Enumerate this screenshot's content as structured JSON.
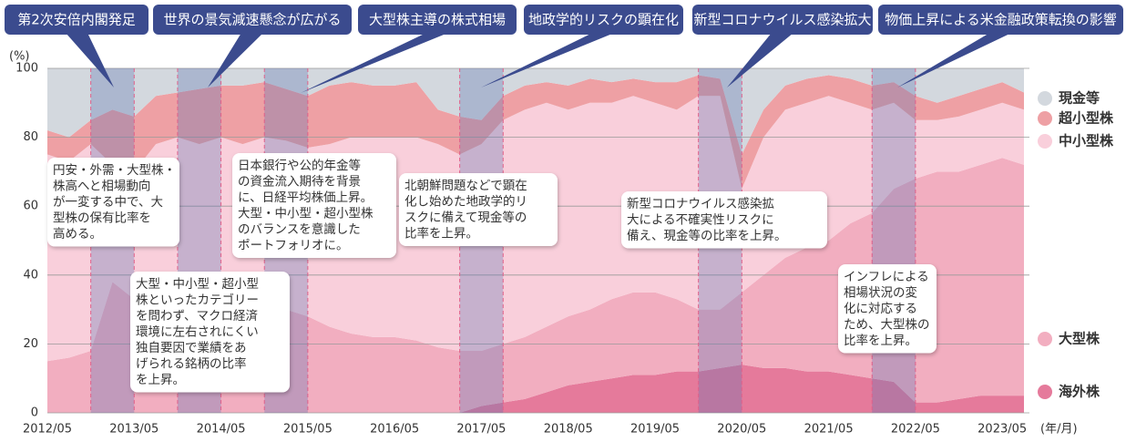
{
  "chart_data": {
    "type": "stacked_area",
    "y_label": "(%)",
    "x_label": "(年/月)",
    "x": [
      "2012/05",
      "2012/08",
      "2012/11",
      "2013/02",
      "2013/05",
      "2013/08",
      "2013/11",
      "2014/02",
      "2014/05",
      "2014/08",
      "2014/11",
      "2015/02",
      "2015/05",
      "2015/08",
      "2015/11",
      "2016/02",
      "2016/05",
      "2016/08",
      "2016/11",
      "2017/02",
      "2017/05",
      "2017/08",
      "2017/11",
      "2018/02",
      "2018/05",
      "2018/08",
      "2018/11",
      "2019/02",
      "2019/05",
      "2019/08",
      "2019/11",
      "2020/02",
      "2020/05",
      "2020/08",
      "2020/11",
      "2021/02",
      "2021/05",
      "2021/08",
      "2021/11",
      "2022/02",
      "2022/05",
      "2022/08",
      "2022/11",
      "2023/02",
      "2023/05",
      "2023/08"
    ],
    "xticks": [
      "2012/05",
      "2013/05",
      "2014/05",
      "2015/05",
      "2016/05",
      "2017/05",
      "2018/05",
      "2019/05",
      "2020/05",
      "2021/05",
      "2022/05",
      "2023/05"
    ],
    "ylim": [
      0,
      100
    ],
    "yticks": [
      0,
      20,
      40,
      60,
      80,
      100
    ],
    "grid": true,
    "series": [
      {
        "name": "海外株",
        "color": "#e57a9b",
        "values": [
          0,
          0,
          0,
          0,
          0,
          0,
          0,
          0,
          0,
          0,
          0,
          0,
          0,
          0,
          0,
          0,
          0,
          0,
          0,
          0,
          2,
          3,
          4,
          6,
          8,
          9,
          10,
          11,
          11,
          12,
          12,
          13,
          14,
          13,
          13,
          12,
          12,
          11,
          10,
          9,
          3,
          3,
          4,
          5,
          5,
          5
        ]
      },
      {
        "name": "大型株",
        "color": "#f2aec0",
        "values": [
          15,
          16,
          18,
          38,
          33,
          32,
          33,
          32,
          30,
          28,
          28,
          30,
          28,
          25,
          23,
          22,
          22,
          21,
          19,
          18,
          16,
          17,
          18,
          19,
          20,
          21,
          23,
          24,
          24,
          21,
          18,
          17,
          21,
          27,
          32,
          36,
          38,
          44,
          48,
          56,
          65,
          67,
          66,
          67,
          69,
          67
        ]
      },
      {
        "name": "中小型株",
        "color": "#f9cfdb",
        "values": [
          60,
          57,
          60,
          34,
          37,
          46,
          47,
          46,
          50,
          50,
          52,
          49,
          49,
          53,
          57,
          58,
          58,
          59,
          59,
          57,
          60,
          65,
          66,
          65,
          60,
          60,
          57,
          57,
          55,
          55,
          62,
          62,
          30,
          40,
          43,
          42,
          42,
          35,
          30,
          25,
          17,
          15,
          16,
          16,
          16,
          16
        ]
      },
      {
        "name": "超小型株",
        "color": "#eea0a4",
        "values": [
          7,
          7,
          7,
          16,
          16,
          14,
          13,
          16,
          15,
          17,
          16,
          15,
          15,
          17,
          16,
          15,
          15,
          16,
          10,
          11,
          7,
          7,
          7,
          6,
          7,
          7,
          6,
          5,
          6,
          8,
          6,
          5,
          10,
          8,
          7,
          7,
          6,
          7,
          7,
          6,
          7,
          5,
          6,
          6,
          6,
          5
        ]
      },
      {
        "name": "現金等",
        "color": "#d3d8de",
        "values": [
          18,
          20,
          15,
          12,
          14,
          8,
          7,
          6,
          5,
          5,
          4,
          6,
          8,
          5,
          4,
          5,
          5,
          4,
          12,
          14,
          15,
          8,
          5,
          4,
          5,
          3,
          4,
          3,
          4,
          4,
          2,
          3,
          25,
          12,
          5,
          3,
          2,
          3,
          5,
          4,
          8,
          10,
          8,
          6,
          4,
          7
        ]
      }
    ],
    "events": [
      {
        "label": "第2次安倍内閣発足",
        "start": "2012/11",
        "end": "2013/05"
      },
      {
        "label": "世界の景気減速懸念が広がる",
        "start": "2013/11",
        "end": "2014/05"
      },
      {
        "label": "大型株主導の株式相場",
        "start": "2014/11",
        "end": "2015/05"
      },
      {
        "label": "地政学的リスクの顕在化",
        "start": "2017/02",
        "end": "2017/08"
      },
      {
        "label": "新型コロナウイルス感染拡大",
        "start": "2019/11",
        "end": "2020/05"
      },
      {
        "label": "物価上昇による米金融政策転換の影響",
        "start": "2021/11",
        "end": "2022/05"
      }
    ],
    "notes": [
      {
        "lines": [
          "円安・外需・大型株・",
          "株高へと相場動向",
          "が一変する中で、大",
          "型株の保有比率を",
          "高める。"
        ]
      },
      {
        "lines": [
          "大型・中小型・超小型",
          "株といったカテゴリー",
          "を問わず、マクロ経済",
          "環境に左右されにくい",
          "独自要因で業績をあ",
          "げられる銘柄の比率",
          "を上昇。"
        ]
      },
      {
        "lines": [
          "日本銀行や公的年金等",
          "の資金流入期待を背景",
          "に、日経平均株価上昇。",
          "大型・中小型・超小型株",
          "のバランスを意識した",
          "ポートフォリオに。"
        ]
      },
      {
        "lines": [
          "北朝鮮問題などで顕在",
          "化し始めた地政学的リ",
          "スクに備えて現金等の",
          "比率を上昇。"
        ]
      },
      {
        "lines": [
          "新型コロナウイルス感染拡",
          "大による不確実性リスクに",
          "備え、現金等の比率を上昇。"
        ]
      },
      {
        "lines": [
          "インフレによる",
          "相場状況の変",
          "化に対応する",
          "ため、大型株の",
          "比率を上昇。"
        ]
      }
    ]
  }
}
